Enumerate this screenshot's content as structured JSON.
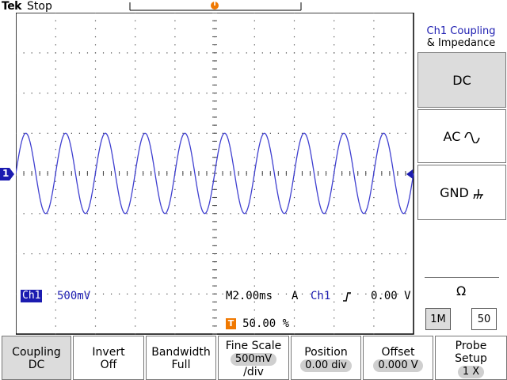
{
  "header": {
    "brand": "Tek",
    "status": "Stop"
  },
  "trigger_marker": "T",
  "channel_marker": "1",
  "readout": {
    "ch_label": "Ch1",
    "volts_div": "500mV",
    "timebase": "M2.00ms",
    "trigger_mode": "A",
    "trigger_source": "Ch1",
    "trigger_level": "0.00 V",
    "trigger_pos_label": "T",
    "trigger_pos": "50.00 %"
  },
  "side_menu": {
    "title_line1": "Ch1 Coupling",
    "title_line2": "& Impedance",
    "dc_label": "DC",
    "ac_label": "AC",
    "gnd_label": "GND",
    "ohm_symbol": "Ω",
    "imp_1m": "1M",
    "imp_50": "50"
  },
  "bottom_menu": [
    {
      "l1": "Coupling",
      "l2": "DC"
    },
    {
      "l1": "Invert",
      "l2": "Off"
    },
    {
      "l1": "Bandwidth",
      "l2": "Full"
    },
    {
      "l1": "Fine Scale",
      "l2": "500mV",
      "l3": "/div"
    },
    {
      "l1": "Position",
      "l2": "0.00 div"
    },
    {
      "l1": "Offset",
      "l2": "0.000 V"
    },
    {
      "l1": "Probe",
      "l2": "Setup",
      "l3": "1 X"
    }
  ],
  "colors": {
    "trace": "#4040d0",
    "trigger": "#f07800",
    "channel": "#1b1bb0"
  },
  "waveform": {
    "cycles": 10,
    "amplitude_div": 1.0
  }
}
